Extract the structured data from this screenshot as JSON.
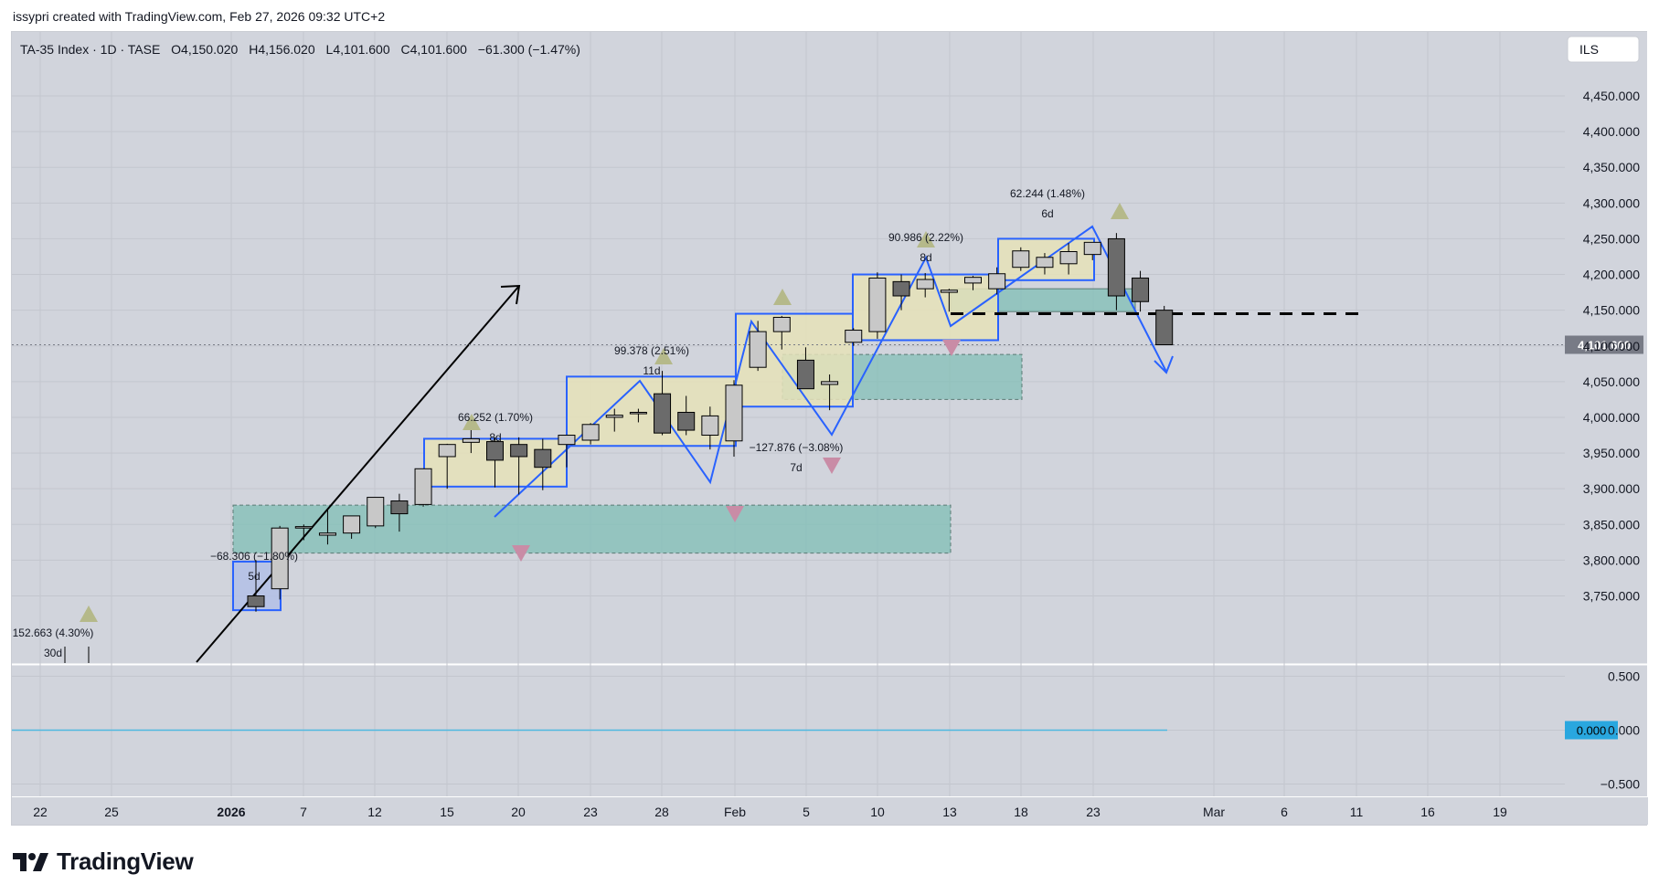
{
  "credit": "issypri created with TradingView.com, Feb 27, 2026 09:32 UTC+2",
  "brand": "TradingView",
  "colors": {
    "pane_bg": "#d1d4dc",
    "candle_up": "#c8c8c8",
    "candle_down": "#6b6b6b",
    "pattern_blue": "#2962ff",
    "zone_teal": "#7fbfb5",
    "box_yellow": "#e6e2b8",
    "tri_up": "#b5b98a",
    "tri_down": "#c98ca6",
    "osc_line": "#4fb8e0",
    "last_price_bg": "#787b86",
    "zero_badge": "#29a7df"
  },
  "chart_data": {
    "type": "candlestick",
    "legend": {
      "symbol": "TA-35 Index · 1D · TASE",
      "o": "O4,150.020",
      "h": "H4,156.020",
      "l": "L4,101.600",
      "c": "C4,101.600",
      "chg": "−61.300 (−1.47%)"
    },
    "currency": "ILS",
    "last_price": "4,101.600",
    "ylim": [
      3700,
      4480
    ],
    "price_ticks": [
      "4,450.000",
      "4,400.000",
      "4,350.000",
      "4,300.000",
      "4,250.000",
      "4,200.000",
      "4,150.000",
      "4,100.000",
      "4,050.000",
      "4,000.000",
      "3,950.000",
      "3,900.000",
      "3,850.000",
      "3,800.000",
      "3,750.000"
    ],
    "x_labels": [
      "22",
      "25",
      "2026",
      "7",
      "12",
      "15",
      "20",
      "23",
      "28",
      "Feb",
      "5",
      "10",
      "13",
      "18",
      "23",
      "Mar",
      "6",
      "11",
      "16",
      "19"
    ],
    "candles": [
      {
        "o": 3750,
        "h": 3800,
        "l": 3728,
        "c": 3735
      },
      {
        "o": 3760,
        "h": 3848,
        "l": 3745,
        "c": 3845
      },
      {
        "o": 3845,
        "h": 3850,
        "l": 3828,
        "c": 3847
      },
      {
        "o": 3835,
        "h": 3870,
        "l": 3822,
        "c": 3838
      },
      {
        "o": 3838,
        "h": 3862,
        "l": 3830,
        "c": 3862
      },
      {
        "o": 3848,
        "h": 3888,
        "l": 3845,
        "c": 3888
      },
      {
        "o": 3883,
        "h": 3893,
        "l": 3840,
        "c": 3865
      },
      {
        "o": 3878,
        "h": 3928,
        "l": 3875,
        "c": 3928
      },
      {
        "o": 3945,
        "h": 3963,
        "l": 3900,
        "c": 3962
      },
      {
        "o": 3965,
        "h": 3985,
        "l": 3950,
        "c": 3970
      },
      {
        "o": 3966,
        "h": 3972,
        "l": 3902,
        "c": 3940
      },
      {
        "o": 3962,
        "h": 3972,
        "l": 3892,
        "c": 3945
      },
      {
        "o": 3955,
        "h": 3970,
        "l": 3898,
        "c": 3930
      },
      {
        "o": 3962,
        "h": 3975,
        "l": 3930,
        "c": 3975
      },
      {
        "o": 3968,
        "h": 3992,
        "l": 3962,
        "c": 3990
      },
      {
        "o": 4000,
        "h": 4012,
        "l": 3980,
        "c": 4003
      },
      {
        "o": 4005,
        "h": 4012,
        "l": 3993,
        "c": 4007
      },
      {
        "o": 4033,
        "h": 4065,
        "l": 3975,
        "c": 3978
      },
      {
        "o": 4007,
        "h": 4030,
        "l": 3975,
        "c": 3982
      },
      {
        "o": 3975,
        "h": 4015,
        "l": 3955,
        "c": 4002
      },
      {
        "o": 3967,
        "h": 4052,
        "l": 3945,
        "c": 4045
      },
      {
        "o": 4070,
        "h": 4135,
        "l": 4065,
        "c": 4120
      },
      {
        "o": 4120,
        "h": 4142,
        "l": 4095,
        "c": 4140
      },
      {
        "o": 4080,
        "h": 4098,
        "l": 4040,
        "c": 4040
      },
      {
        "o": 4046,
        "h": 4060,
        "l": 4010,
        "c": 4050
      },
      {
        "o": 4105,
        "h": 4125,
        "l": 4100,
        "c": 4122
      },
      {
        "o": 4120,
        "h": 4203,
        "l": 4110,
        "c": 4195
      },
      {
        "o": 4190,
        "h": 4200,
        "l": 4150,
        "c": 4170
      },
      {
        "o": 4180,
        "h": 4202,
        "l": 4168,
        "c": 4193
      },
      {
        "o": 4175,
        "h": 4180,
        "l": 4148,
        "c": 4178
      },
      {
        "o": 4188,
        "h": 4198,
        "l": 4178,
        "c": 4196
      },
      {
        "o": 4180,
        "h": 4210,
        "l": 4172,
        "c": 4201
      },
      {
        "o": 4210,
        "h": 4238,
        "l": 4205,
        "c": 4233
      },
      {
        "o": 4210,
        "h": 4230,
        "l": 4200,
        "c": 4224
      },
      {
        "o": 4215,
        "h": 4244,
        "l": 4200,
        "c": 4232
      },
      {
        "o": 4228,
        "h": 4245,
        "l": 4220,
        "c": 4245
      },
      {
        "o": 4250,
        "h": 4258,
        "l": 4150,
        "c": 4170
      },
      {
        "o": 4195,
        "h": 4205,
        "l": 4148,
        "c": 4162
      },
      {
        "o": 4150,
        "h": 4156,
        "l": 4101.6,
        "c": 4101.6
      }
    ],
    "annotations": [
      {
        "line1": "152.663 (4.30%)",
        "line2": "30d"
      },
      {
        "line1": "−68.306 (−1.80%)",
        "line2": "5d"
      },
      {
        "line1": "66.252 (1.70%)",
        "line2": "8d"
      },
      {
        "line1": "99.378 (2.51%)",
        "line2": "11d"
      },
      {
        "line1": "−127.876 (−3.08%)",
        "line2": "7d"
      },
      {
        "line1": "90.986 (2.22%)",
        "line2": "8d"
      },
      {
        "line1": "62.244 (1.48%)",
        "line2": "6d"
      }
    ],
    "oscillator": {
      "ticks": [
        "0.500",
        "0.000",
        "−0.500"
      ],
      "ylim": [
        -0.6,
        0.65
      ],
      "value": 0.0,
      "badge": "0.000"
    },
    "grid": true
  }
}
